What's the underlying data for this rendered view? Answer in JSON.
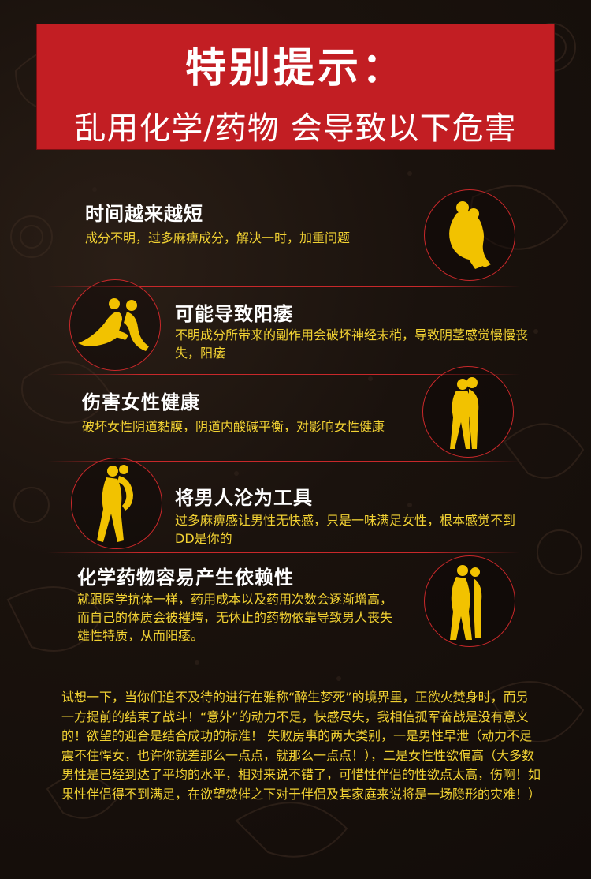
{
  "banner": {
    "title": "特别提示：",
    "subtitle": "乱用化学/药物 会导致以下危害"
  },
  "items": [
    {
      "heading": "时间越来越短",
      "desc": "成分不明，过多麻痹成分，解决一时，加重问题",
      "icon": "couple-kneeling-icon"
    },
    {
      "heading": "可能导致阳痿",
      "desc": "不明成分所带来的副作用会破坏神经末梢，导致阴茎感觉慢慢丧失，阳痿",
      "icon": "couple-reclining-icon"
    },
    {
      "heading": "伤害女性健康",
      "desc": "破坏女性阴道黏膜，阴道内酸碱平衡，对影响女性健康",
      "icon": "couple-embracing-icon"
    },
    {
      "heading": "将男人沦为工具",
      "desc": "过多麻痹感让男性无快感，只是一味满足女性，根本感觉不到DD是你的",
      "icon": "couple-lifting-icon"
    },
    {
      "heading": "化学药物容易产生依赖性",
      "desc": "就跟医学抗体一样，药用成本以及药用次数会逐渐增高，而自己的体质会被摧垮，无休止的药物依靠导致男人丧失雄性特质，从而阳痿。",
      "icon": "couple-kissing-icon"
    }
  ],
  "paragraph": "试想一下，当你们迫不及待的进行在雅称“醉生梦死”的境界里，正欲火焚身时，而另一方提前的结束了战斗！“意外”的动力不足，快感尽失，我相信孤军奋战是没有意义的！欲望的迎合是结合成功的标准！ 失败房事的两大类别，一是男性早泄（动力不足震不住悍女，也许你就差那么一点点，就那么一点点！），二是女性性欲偏高（大多数男性是已经到达了平均的水平，相对来说不错了，可惜性伴侣的性欲点太高，伤啊！如果性伴侣得不到满足，在欲望焚催之下对于伴侣及其家庭来说将是一场隐形的灾难！）",
  "colors": {
    "banner": "#c21e23",
    "accent": "#f2d233",
    "ring": "#c8282a",
    "background": "#1a120d"
  }
}
